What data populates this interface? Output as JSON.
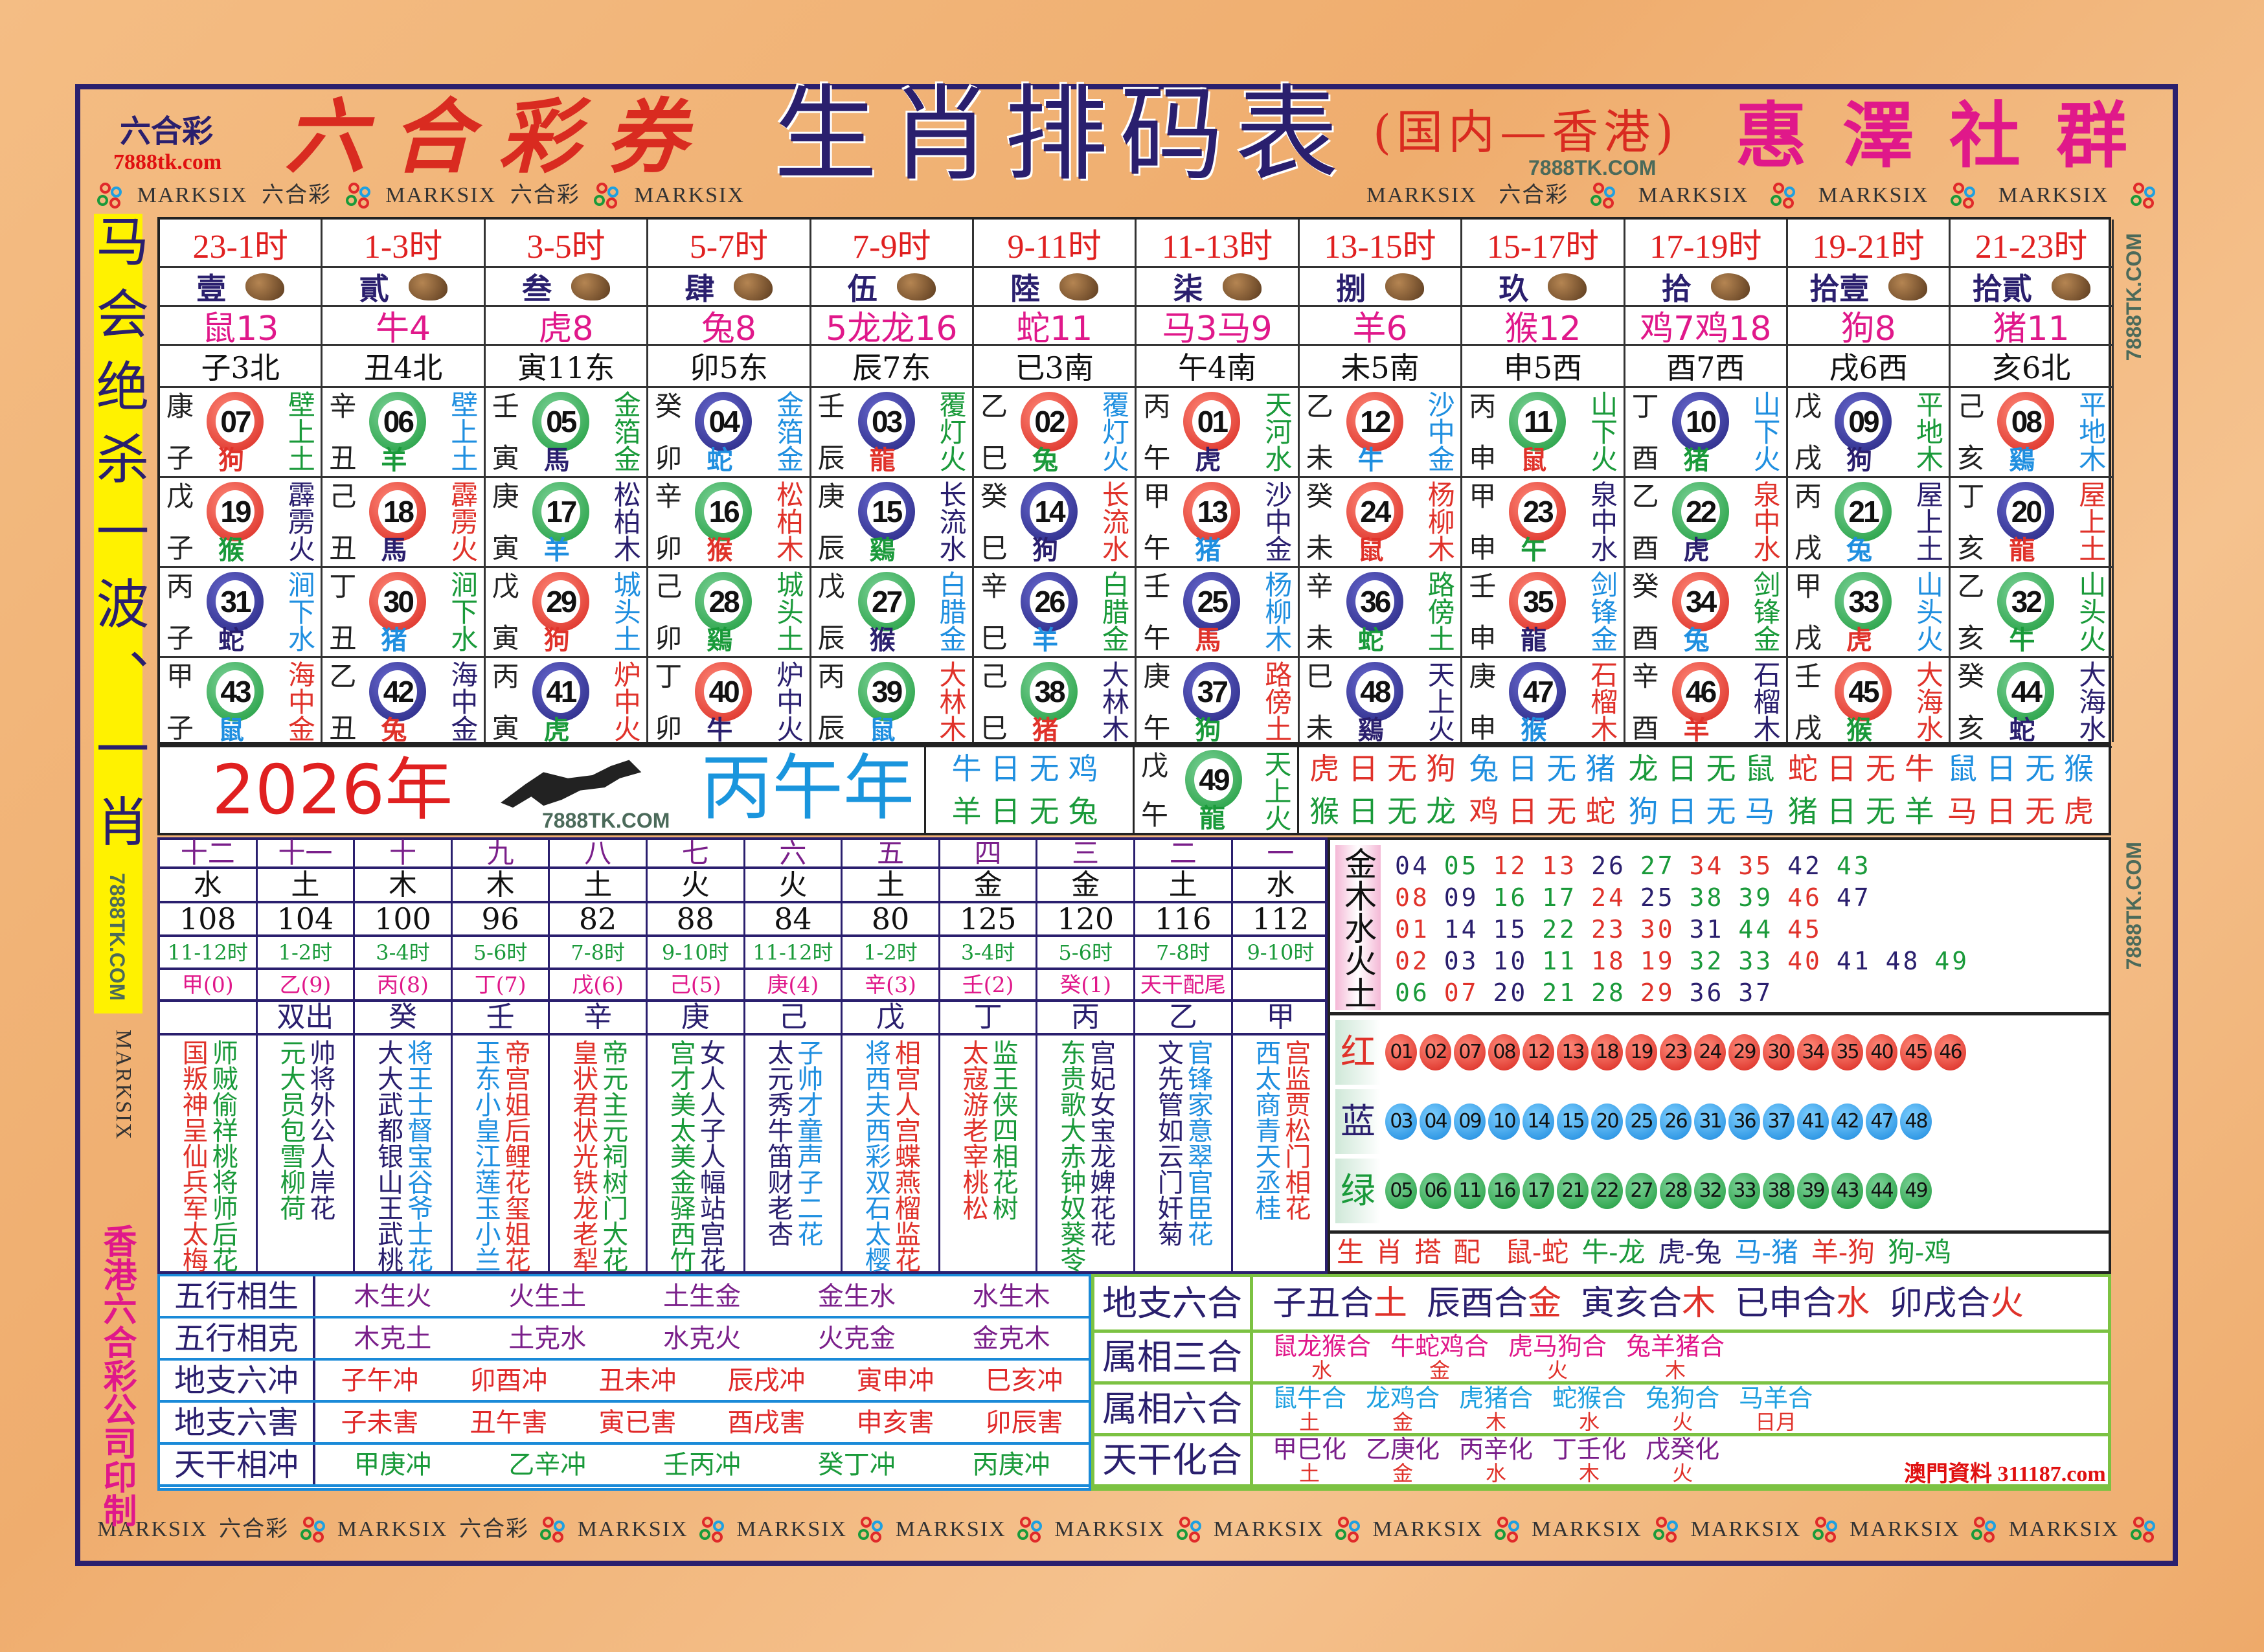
{
  "header": {
    "logo": "六合彩",
    "logo_site": "7888tk.com",
    "brand": "六合彩券",
    "title": "生肖排码表",
    "region": "(国内—香港)",
    "group": "惠澤社群",
    "site_mark": "7888TK.COM"
  },
  "watermark": {
    "marksix": "MARKSIX",
    "liuhecai": "六合彩",
    "site": "7888TK.COM"
  },
  "left_banner": "马会绝杀一波、一肖",
  "left_footer": "香港六合彩公司印制",
  "colors": {
    "red": "#e0322a",
    "blue": "#1f8fe0",
    "green": "#1a9a3a",
    "navy": "#2a1f6e",
    "magenta": "#e0188a",
    "accent_red": "#d92b20"
  },
  "columns": [
    {
      "time": "23-1时",
      "num": "壹",
      "icon": "rat-icon",
      "zodiac": "鼠13",
      "branch": "子3北",
      "cells": [
        [
          "康",
          "07",
          "子",
          "狗",
          "壁上土"
        ],
        [
          "戊",
          "19",
          "子",
          "猴",
          "霹雳火"
        ],
        [
          "丙",
          "31",
          "子",
          "蛇",
          "涧下水"
        ],
        [
          "甲",
          "43",
          "子",
          "鼠",
          "海中金"
        ]
      ]
    },
    {
      "time": "1-3时",
      "num": "貳",
      "icon": "ox-icon",
      "zodiac": "牛4",
      "branch": "丑4北",
      "cells": [
        [
          "辛",
          "06",
          "丑",
          "羊",
          "壁上土"
        ],
        [
          "己",
          "18",
          "丑",
          "馬",
          "霹雳火"
        ],
        [
          "丁",
          "30",
          "丑",
          "猪",
          "涧下水"
        ],
        [
          "乙",
          "42",
          "丑",
          "兔",
          "海中金"
        ]
      ]
    },
    {
      "time": "3-5时",
      "num": "叁",
      "icon": "tiger-icon",
      "zodiac": "虎8",
      "branch": "寅11东",
      "cells": [
        [
          "壬",
          "05",
          "寅",
          "馬",
          "金箔金"
        ],
        [
          "庚",
          "17",
          "寅",
          "羊",
          "松柏木"
        ],
        [
          "戊",
          "29",
          "寅",
          "狗",
          "城头土"
        ],
        [
          "丙",
          "41",
          "寅",
          "虎",
          "炉中火"
        ]
      ]
    },
    {
      "time": "5-7时",
      "num": "肆",
      "icon": "rabbit-icon",
      "zodiac": "兔8",
      "branch": "卯5东",
      "cells": [
        [
          "癸",
          "04",
          "卯",
          "蛇",
          "金箔金"
        ],
        [
          "辛",
          "16",
          "卯",
          "猴",
          "松柏木"
        ],
        [
          "己",
          "28",
          "卯",
          "鷄",
          "城头土"
        ],
        [
          "丁",
          "40",
          "卯",
          "牛",
          "炉中火"
        ]
      ]
    },
    {
      "time": "7-9时",
      "num": "伍",
      "icon": "dragon-icon",
      "zodiac": "5龙龙16",
      "branch": "辰7东",
      "cells": [
        [
          "壬",
          "03",
          "辰",
          "龍",
          "覆灯火"
        ],
        [
          "庚",
          "15",
          "辰",
          "鷄",
          "长流水"
        ],
        [
          "戊",
          "27",
          "辰",
          "猴",
          "白腊金"
        ],
        [
          "丙",
          "39",
          "辰",
          "鼠",
          "大林木"
        ]
      ]
    },
    {
      "time": "9-11时",
      "num": "陸",
      "icon": "snake-icon",
      "zodiac": "蛇11",
      "branch": "已3南",
      "cells": [
        [
          "乙",
          "02",
          "巳",
          "兔",
          "覆灯火"
        ],
        [
          "癸",
          "14",
          "巳",
          "狗",
          "长流水"
        ],
        [
          "辛",
          "26",
          "巳",
          "羊",
          "白腊金"
        ],
        [
          "己",
          "38",
          "巳",
          "猪",
          "大林木"
        ]
      ]
    },
    {
      "time": "11-13时",
      "num": "柒",
      "icon": "horse-icon",
      "zodiac": "马3马9",
      "branch": "午4南",
      "cells": [
        [
          "丙",
          "01",
          "午",
          "虎",
          "天河水"
        ],
        [
          "甲",
          "13",
          "午",
          "猪",
          "沙中金"
        ],
        [
          "壬",
          "25",
          "午",
          "馬",
          "杨柳木"
        ],
        [
          "庚",
          "37",
          "午",
          "狗",
          "路傍土"
        ]
      ]
    },
    {
      "time": "13-15时",
      "num": "捌",
      "icon": "goat-icon",
      "zodiac": "羊6",
      "branch": "未5南",
      "cells": [
        [
          "乙",
          "12",
          "未",
          "牛",
          "沙中金"
        ],
        [
          "癸",
          "24",
          "未",
          "鼠",
          "杨柳木"
        ],
        [
          "辛",
          "36",
          "未",
          "蛇",
          "路傍土"
        ],
        [
          "巳",
          "48",
          "未",
          "鷄",
          "天上火"
        ]
      ]
    },
    {
      "time": "15-17时",
      "num": "玖",
      "icon": "monkey-icon",
      "zodiac": "猴12",
      "branch": "申5西",
      "cells": [
        [
          "丙",
          "11",
          "申",
          "鼠",
          "山下火"
        ],
        [
          "甲",
          "23",
          "申",
          "午",
          "泉中水"
        ],
        [
          "壬",
          "35",
          "申",
          "龍",
          "剑锋金"
        ],
        [
          "庚",
          "47",
          "申",
          "猴",
          "石榴木"
        ]
      ]
    },
    {
      "time": "17-19时",
      "num": "拾",
      "icon": "rooster-icon",
      "zodiac": "鸡7鸡18",
      "branch": "酉7西",
      "cells": [
        [
          "丁",
          "10",
          "酉",
          "猪",
          "山下火"
        ],
        [
          "乙",
          "22",
          "酉",
          "虎",
          "泉中水"
        ],
        [
          "癸",
          "34",
          "酉",
          "兔",
          "剑锋金"
        ],
        [
          "辛",
          "46",
          "酉",
          "羊",
          "石榴木"
        ]
      ]
    },
    {
      "time": "19-21时",
      "num": "拾壹",
      "icon": "dog-icon",
      "zodiac": "狗8",
      "branch": "戌6西",
      "cells": [
        [
          "戊",
          "09",
          "戌",
          "狗",
          "平地木"
        ],
        [
          "丙",
          "21",
          "戌",
          "兔",
          "屋上土"
        ],
        [
          "甲",
          "33",
          "戌",
          "虎",
          "山头火"
        ],
        [
          "壬",
          "45",
          "戌",
          "猴",
          "大海水"
        ]
      ]
    },
    {
      "time": "21-23时",
      "num": "拾貳",
      "icon": "pig-icon",
      "zodiac": "猪11",
      "branch": "亥6北",
      "cells": [
        [
          "己",
          "08",
          "亥",
          "鷄",
          "平地木"
        ],
        [
          "丁",
          "20",
          "亥",
          "龍",
          "屋上土"
        ],
        [
          "乙",
          "32",
          "亥",
          "牛",
          "山头火"
        ],
        [
          "癸",
          "44",
          "亥",
          "蛇",
          "大海水"
        ]
      ]
    }
  ],
  "year": {
    "year": "2026年",
    "ganzhi": "丙午年",
    "site": "7888TK.COM"
  },
  "no_day": {
    "left": [
      "牛日无鸡",
      "羊日无兔"
    ],
    "row1": [
      "虎日无狗",
      "兔日无猪",
      "龙日无鼠",
      "蛇日无牛",
      "鼠日无猴"
    ],
    "row2": [
      "猴日无龙",
      "鸡日无蛇",
      "狗日无马",
      "猪日无羊",
      "马日无虎"
    ]
  },
  "special": {
    "stem": "戊",
    "num": "49",
    "branch": "午",
    "animal": "龍",
    "nayin": "天上火"
  },
  "lower": {
    "numerals": [
      "十二",
      "十一",
      "十",
      "九",
      "八",
      "七",
      "六",
      "五",
      "四",
      "三",
      "二",
      "一"
    ],
    "elements": [
      "水",
      "土",
      "木",
      "木",
      "土",
      "火",
      "火",
      "土",
      "金",
      "金",
      "土",
      "水"
    ],
    "values": [
      "108",
      "104",
      "100",
      "96",
      "82",
      "88",
      "84",
      "80",
      "125",
      "120",
      "116",
      "112"
    ],
    "times": [
      "11-12时",
      "1-2时",
      "3-4时",
      "5-6时",
      "7-8时",
      "9-10时",
      "11-12时",
      "1-2时",
      "3-4时",
      "5-6时",
      "7-8时",
      "9-10时"
    ],
    "stems": [
      "甲(0)",
      "乙(9)",
      "丙(8)",
      "丁(7)",
      "戊(6)",
      "己(5)",
      "庚(4)",
      "辛(3)",
      "壬(2)",
      "癸(1)",
      "天干配尾",
      ""
    ],
    "stems2": [
      "",
      "双出",
      "癸",
      "壬",
      "辛",
      "庚",
      "己",
      "戊",
      "丁",
      "丙",
      "乙",
      "甲"
    ],
    "verses": [
      [
        "师贼偷祥桃将师后花",
        "国叛神呈仙兵军太梅"
      ],
      [
        "帅将外公人岸花",
        "元大员包雪柳荷"
      ],
      [
        "将王士督宝谷爷士花",
        "大大武都银山王武桃"
      ],
      [
        "帝宫姐后鲤花玺姐花",
        "玉东小皇江莲玉小兰"
      ],
      [
        "帝元主元祠树门大花",
        "皇状君状光铁龙老犁"
      ],
      [
        "女人人子人幅站宫花",
        "宫才美太美金驿西竹"
      ],
      [
        "子帅才童声子二花",
        "太元秀牛笛财老杏"
      ],
      [
        "相宫人宫蝶燕榴监花",
        "将西夫西彩双石太樱"
      ],
      [
        "监王侠四相花树",
        "太寇游老宰桃松"
      ],
      [
        "宫妃女宝龙婢花花",
        "东贵歌大赤钟奴葵苓"
      ],
      [
        "官锋家意翠官臣花",
        "文先管如云门奸菊"
      ],
      [
        "宫监贾松门相花",
        "西太商青天丞桂"
      ]
    ]
  },
  "wuxing": {
    "label": "金木水火土",
    "rows": [
      [
        "04",
        "05",
        "12",
        "13",
        "26",
        "27",
        "34",
        "35",
        "42",
        "43"
      ],
      [
        "08",
        "09",
        "16",
        "17",
        "24",
        "25",
        "38",
        "39",
        "46",
        "47"
      ],
      [
        "01",
        "14",
        "15",
        "22",
        "23",
        "30",
        "31",
        "44",
        "45"
      ],
      [
        "02",
        "03",
        "10",
        "11",
        "18",
        "19",
        "32",
        "33",
        "40",
        "41",
        "48",
        "49"
      ],
      [
        "06",
        "07",
        "20",
        "21",
        "28",
        "29",
        "36",
        "37"
      ]
    ]
  },
  "waves": [
    {
      "label": "红",
      "color": "red",
      "nums": [
        "01",
        "02",
        "07",
        "08",
        "12",
        "13",
        "18",
        "19",
        "23",
        "24",
        "29",
        "30",
        "34",
        "35",
        "40",
        "45",
        "46"
      ]
    },
    {
      "label": "蓝",
      "color": "blue",
      "nums": [
        "03",
        "04",
        "09",
        "10",
        "14",
        "15",
        "20",
        "25",
        "26",
        "31",
        "36",
        "37",
        "41",
        "42",
        "47",
        "48"
      ]
    },
    {
      "label": "绿",
      "color": "green",
      "nums": [
        "05",
        "06",
        "11",
        "16",
        "17",
        "21",
        "22",
        "27",
        "28",
        "32",
        "33",
        "38",
        "39",
        "43",
        "44",
        "49"
      ]
    }
  ],
  "pairing": {
    "label": "生肖搭配",
    "items": [
      "鼠-蛇",
      "牛-龙",
      "虎-兔",
      "马-猪",
      "羊-狗",
      "狗-鸡"
    ]
  },
  "bottom_left": [
    {
      "label": "五行相生",
      "items": [
        "木生火",
        "火生土",
        "土生金",
        "金生水",
        "水生木"
      ],
      "color": "#7a1f8a"
    },
    {
      "label": "五行相克",
      "items": [
        "木克土",
        "土克水",
        "水克火",
        "火克金",
        "金克木"
      ],
      "color": "#7a1f8a"
    },
    {
      "label": "地支六冲",
      "items": [
        "子午冲",
        "卯酉冲",
        "丑未冲",
        "辰戌冲",
        "寅申冲",
        "巳亥冲"
      ],
      "color": "#e02a2a"
    },
    {
      "label": "地支六害",
      "items": [
        "子未害",
        "丑午害",
        "寅已害",
        "酉戌害",
        "申亥害",
        "卯辰害"
      ],
      "color": "#e02a2a"
    },
    {
      "label": "天干相冲",
      "items": [
        "甲庚冲",
        "乙辛冲",
        "壬丙冲",
        "癸丁冲",
        "丙庚冲"
      ],
      "color": "#1a9a3a"
    }
  ],
  "bottom_right": [
    {
      "label": "地支六合",
      "items": [
        [
          "子丑合",
          "土"
        ],
        [
          "辰酉合",
          "金"
        ],
        [
          "寅亥合",
          "木"
        ],
        [
          "已申合",
          "水"
        ],
        [
          "卯戌合",
          "火"
        ]
      ],
      "inline": true,
      "color": "#2a1f6e"
    },
    {
      "label": "属相三合",
      "items": [
        [
          "鼠龙猴合",
          "水"
        ],
        [
          "牛蛇鸡合",
          "金"
        ],
        [
          "虎马狗合",
          "火"
        ],
        [
          "兔羊猪合",
          "木"
        ]
      ],
      "color": "#e0188a"
    },
    {
      "label": "属相六合",
      "items": [
        [
          "鼠牛合",
          "土"
        ],
        [
          "龙鸡合",
          "金"
        ],
        [
          "虎猪合",
          "木"
        ],
        [
          "蛇猴合",
          "水"
        ],
        [
          "兔狗合",
          "火"
        ],
        [
          "马羊合",
          "日月"
        ]
      ],
      "color": "#1fa0e0"
    },
    {
      "label": "天干化合",
      "items": [
        [
          "甲巳化",
          "土"
        ],
        [
          "乙庚化",
          "金"
        ],
        [
          "丙辛化",
          "水"
        ],
        [
          "丁壬化",
          "木"
        ],
        [
          "戊癸化",
          "火"
        ]
      ],
      "color": "#7a1f8a"
    }
  ],
  "footer_site": "澳門資料 311187.com"
}
